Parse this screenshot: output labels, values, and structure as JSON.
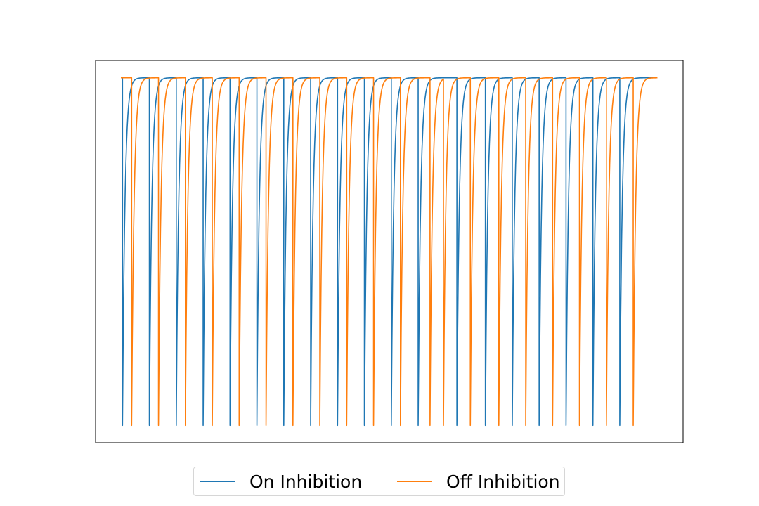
{
  "chart_data": {
    "type": "line",
    "title": "",
    "xlabel": "",
    "ylabel": "",
    "grid": false,
    "axes_visible": false,
    "legend_position": "bottom-center",
    "x_range": [
      0,
      100
    ],
    "y_range": [
      -0.05,
      1.05
    ],
    "series": [
      {
        "name": "On Inhibition",
        "color": "#1f77b4",
        "spike_times": [
          0.3,
          5.3,
          10.3,
          15.3,
          20.3,
          25.3,
          30.3,
          35.3,
          40.3,
          45.3,
          50.3,
          55.3,
          62.5,
          67.8,
          72.8,
          77.8,
          82.8,
          87.8,
          92.8
        ],
        "end_x": 99.5
      },
      {
        "name": "Off Inhibition",
        "color": "#ff7f0e",
        "spike_times": [
          2.0,
          7.0,
          12.0,
          17.0,
          22.0,
          27.0,
          32.0,
          37.0,
          42.0,
          47.0,
          52.0,
          57.5,
          60.0,
          65.0,
          70.3,
          75.3,
          80.3,
          85.3,
          90.3,
          95.3
        ],
        "end_x": 99.8
      }
    ],
    "line_model": {
      "baseline": 1.0,
      "trough": 0.0,
      "recovery_time_constant": 0.45
    }
  }
}
